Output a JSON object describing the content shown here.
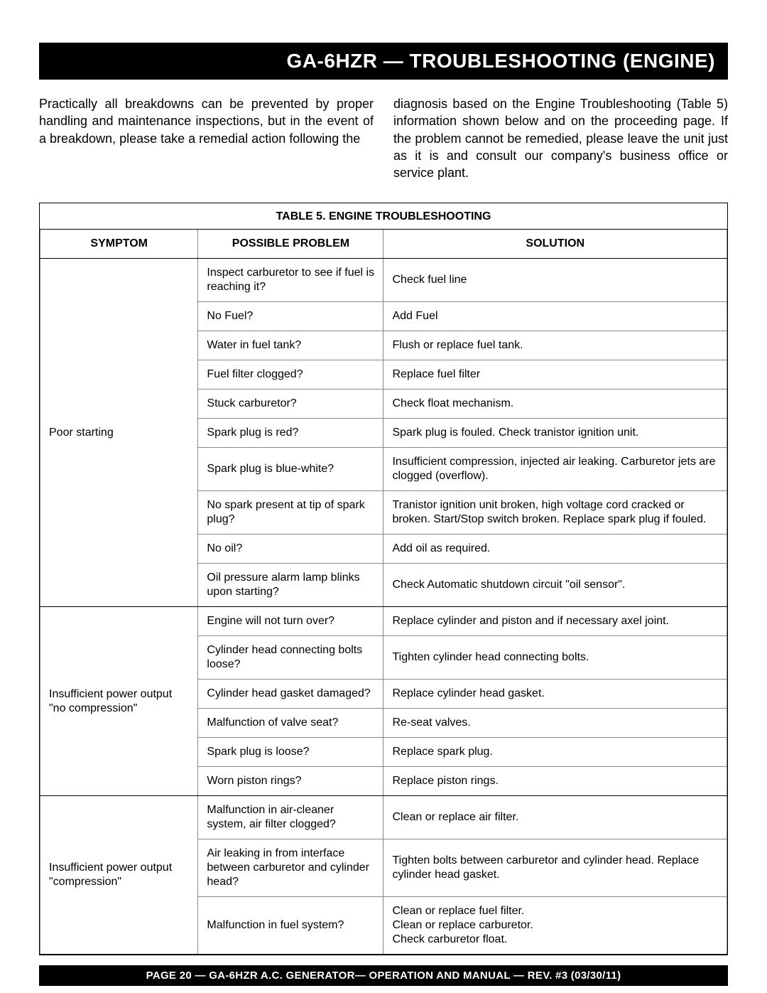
{
  "title": "GA-6HZR — TROUBLESHOOTING (ENGINE)",
  "intro": {
    "left": "Practically all breakdowns can be prevented by proper handling and maintenance inspections, but in the event of a breakdown, please take a remedial action following the",
    "right": "diagnosis based on the Engine Troubleshooting (Table 5) information shown below and on the proceeding page. If the problem cannot be remedied, please leave the unit just as it is and consult our company's business office or service plant."
  },
  "table": {
    "caption": "TABLE 5. ENGINE TROUBLESHOOTING",
    "headers": {
      "symptom": "SYMPTOM",
      "problem": "POSSIBLE PROBLEM",
      "solution": "SOLUTION"
    },
    "groups": [
      {
        "symptom": "Poor starting",
        "rows": [
          {
            "problem": "Inspect carburetor to see if fuel is reaching it?",
            "solution": "Check fuel line"
          },
          {
            "problem": "No Fuel?",
            "solution": "Add Fuel"
          },
          {
            "problem": "Water in fuel tank?",
            "solution": "Flush or replace fuel tank."
          },
          {
            "problem": "Fuel filter clogged?",
            "solution": "Replace fuel filter"
          },
          {
            "problem": "Stuck carburetor?",
            "solution": "Check float mechanism."
          },
          {
            "problem": "Spark plug is red?",
            "solution": "Spark plug is fouled. Check tranistor ignition unit."
          },
          {
            "problem": "Spark plug is blue-white?",
            "solution": "Insufficient compression, injected air leaking. Carburetor jets are clogged (overflow)."
          },
          {
            "problem": "No spark present at tip of spark plug?",
            "solution": "Tranistor ignition unit broken, high voltage cord cracked or broken. Start/Stop switch broken. Replace spark plug if fouled."
          },
          {
            "problem": "No oil?",
            "solution": "Add oil as required."
          },
          {
            "problem": "Oil pressure alarm lamp blinks upon starting?",
            "solution": "Check Automatic shutdown circuit \"oil sensor\"."
          }
        ]
      },
      {
        "symptom": "Insufficient power output \"no compression\"",
        "rows": [
          {
            "problem": "Engine will not turn over?",
            "solution": "Replace cylinder and piston and if necessary axel joint."
          },
          {
            "problem": "Cylinder head connecting bolts loose?",
            "solution": "Tighten cylinder head connecting bolts."
          },
          {
            "problem": "Cylinder head gasket damaged?",
            "solution": "Replace cylinder head gasket."
          },
          {
            "problem": "Malfunction of valve seat?",
            "solution": "Re-seat valves."
          },
          {
            "problem": "Spark plug is loose?",
            "solution": "Replace spark plug."
          },
          {
            "problem": "Worn piston rings?",
            "solution": "Replace piston rings."
          }
        ]
      },
      {
        "symptom": "Insufficient power output \"compression\"",
        "rows": [
          {
            "problem": "Malfunction in air-cleaner system, air filter clogged?",
            "solution": "Clean or replace air filter."
          },
          {
            "problem": "Air leaking in from interface between carburetor and cylinder head?",
            "solution": "Tighten bolts between carburetor and cylinder head. Replace cylinder head gasket."
          },
          {
            "problem": "Malfunction in fuel system?",
            "solution_lines": [
              "Clean or replace fuel filter.",
              "Clean or replace carburetor.",
              "Check carburetor float."
            ]
          }
        ]
      }
    ]
  },
  "footer": "PAGE 20 — GA-6HZR A.C. GENERATOR— OPERATION AND MANUAL — REV. #3 (03/30/11)"
}
